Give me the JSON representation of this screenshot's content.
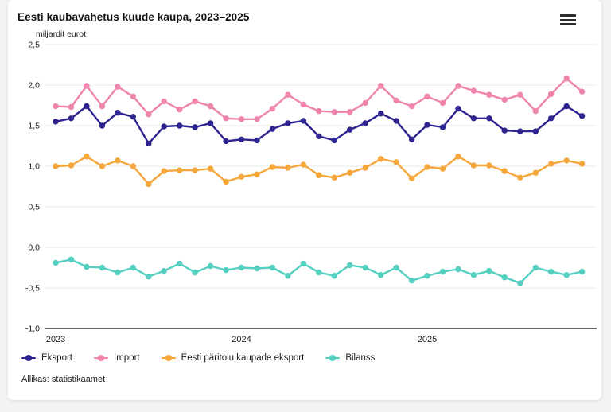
{
  "chart_data": {
    "type": "line",
    "title": "Eesti kaubavahetus kuude kaupa, 2023–2025",
    "ylabel": "miljardit eurot",
    "source": "Allikas: statistikaamet",
    "legend_position": "bottom",
    "grid": "horizontal",
    "x_axis": {
      "n_points": 35,
      "granularity": "monthly",
      "ticks": [
        {
          "label": "2023",
          "index": 0
        },
        {
          "label": "2024",
          "index": 12
        },
        {
          "label": "2025",
          "index": 24
        }
      ]
    },
    "y_axis": {
      "min": -1.0,
      "max": 2.5,
      "ticks": [
        {
          "value": 2.5,
          "label": "2,5"
        },
        {
          "value": 2.0,
          "label": "2,0"
        },
        {
          "value": 1.5,
          "label": "1,5"
        },
        {
          "value": 1.0,
          "label": "1,0"
        },
        {
          "value": 0.5,
          "label": "0,5"
        },
        {
          "value": 0.0,
          "label": "0,0"
        },
        {
          "value": -0.5,
          "label": "-0,5"
        },
        {
          "value": -1.0,
          "label": "-1,0"
        }
      ]
    },
    "series": [
      {
        "name": "Eksport",
        "color": "#2e2490",
        "values": [
          1.55,
          1.59,
          1.74,
          1.5,
          1.66,
          1.61,
          1.28,
          1.49,
          1.5,
          1.48,
          1.53,
          1.31,
          1.33,
          1.32,
          1.46,
          1.53,
          1.56,
          1.37,
          1.32,
          1.45,
          1.53,
          1.65,
          1.56,
          1.33,
          1.51,
          1.48,
          1.71,
          1.59,
          1.59,
          1.44,
          1.43,
          1.43,
          1.59,
          1.74,
          1.62
        ]
      },
      {
        "name": "Import",
        "color": "#ef84ac",
        "values": [
          1.74,
          1.73,
          1.99,
          1.74,
          1.98,
          1.86,
          1.64,
          1.8,
          1.7,
          1.8,
          1.74,
          1.59,
          1.58,
          1.58,
          1.71,
          1.88,
          1.76,
          1.68,
          1.67,
          1.67,
          1.78,
          1.99,
          1.81,
          1.74,
          1.86,
          1.78,
          1.99,
          1.93,
          1.88,
          1.82,
          1.88,
          1.68,
          1.89,
          2.08,
          1.92
        ]
      },
      {
        "name": "Eesti päritolu kaupade eksport",
        "color": "#f6a73c",
        "values": [
          1.0,
          1.01,
          1.12,
          1.0,
          1.07,
          1.0,
          0.78,
          0.94,
          0.95,
          0.95,
          0.97,
          0.81,
          0.87,
          0.9,
          0.99,
          0.98,
          1.02,
          0.89,
          0.86,
          0.92,
          0.98,
          1.09,
          1.05,
          0.85,
          0.99,
          0.97,
          1.12,
          1.01,
          1.01,
          0.94,
          0.86,
          0.92,
          1.03,
          1.07,
          1.03
        ]
      },
      {
        "name": "Bilanss",
        "color": "#54cfc0",
        "values": [
          -0.19,
          -0.15,
          -0.24,
          -0.25,
          -0.31,
          -0.25,
          -0.36,
          -0.29,
          -0.2,
          -0.31,
          -0.23,
          -0.28,
          -0.25,
          -0.26,
          -0.25,
          -0.35,
          -0.2,
          -0.31,
          -0.35,
          -0.22,
          -0.25,
          -0.34,
          -0.25,
          -0.41,
          -0.35,
          -0.3,
          -0.27,
          -0.34,
          -0.29,
          -0.37,
          -0.44,
          -0.25,
          -0.3,
          -0.34,
          -0.3
        ]
      }
    ],
    "style": {
      "gridline_color": "#e9e9e9",
      "axis_color": "#3d3d3d",
      "tick_text_color": "#222222"
    }
  }
}
